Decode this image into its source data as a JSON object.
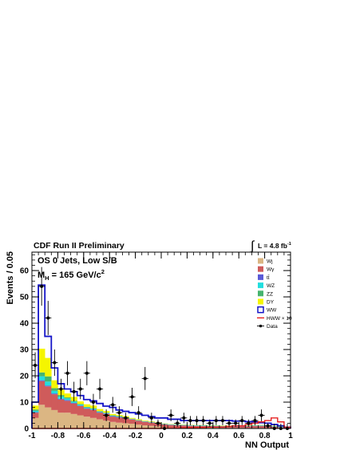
{
  "chart_data": {
    "type": "bar",
    "title": "CDF Run II Preliminary",
    "luminosity": "L = 4.8 fb",
    "luminosity_exp": "-1",
    "channel": "OS 0 Jets, Low S/B",
    "mass_label": "M",
    "mass_sub": "H",
    "mass_value": " = 165 GeV/c",
    "mass_exp": "2",
    "xlabel": "NN Output",
    "ylabel": "Events / 0.05",
    "xlim": [
      -1,
      1
    ],
    "ylim": [
      0,
      67
    ],
    "xticks": [
      -1,
      -0.8,
      -0.6,
      -0.4,
      -0.2,
      0,
      0.2,
      0.4,
      0.6,
      0.8,
      1
    ],
    "xtick_labels": [
      "-1",
      "-0.8",
      "-0.6",
      "-0.4",
      "-0.2",
      "0",
      "0.2",
      "0.4",
      "0.6",
      "0.8",
      "1"
    ],
    "yticks": [
      0,
      10,
      20,
      30,
      40,
      50,
      60
    ],
    "ytick_labels": [
      "0",
      "10",
      "20",
      "30",
      "40",
      "50",
      "60"
    ],
    "bin_edges": [
      -1,
      -0.95,
      -0.9,
      -0.85,
      -0.8,
      -0.75,
      -0.7,
      -0.65,
      -0.6,
      -0.55,
      -0.5,
      -0.45,
      -0.4,
      -0.35,
      -0.3,
      -0.25,
      -0.2,
      -0.15,
      -0.1,
      -0.05,
      0,
      0.05,
      0.1,
      0.15,
      0.2,
      0.25,
      0.3,
      0.35,
      0.4,
      0.45,
      0.5,
      0.55,
      0.6,
      0.65,
      0.7,
      0.75,
      0.8,
      0.85,
      0.9,
      0.95,
      1
    ],
    "stack": [
      {
        "name": "Wj",
        "color": "#dbb683",
        "values": [
          4,
          9,
          8,
          7,
          6,
          6,
          5.5,
          5,
          4.5,
          4,
          3.5,
          3,
          2.5,
          2.2,
          2,
          1.8,
          1.5,
          1.2,
          1,
          0.8,
          0.6,
          0.5,
          0.4,
          0.4,
          0.3,
          0.3,
          0.3,
          0.3,
          0.3,
          0.2,
          0.2,
          0.2,
          0.2,
          0.2,
          0.2,
          0.2,
          0.2,
          0.1,
          0.1,
          0.1
        ]
      },
      {
        "name": "Wγ",
        "color": "#cf5b5b",
        "values": [
          2,
          9,
          8,
          6,
          5,
          4.5,
          4,
          3.5,
          3,
          3,
          2.5,
          2.5,
          2,
          2,
          1.8,
          1.6,
          1.4,
          1.3,
          1.2,
          1,
          0.9,
          0.8,
          0.8,
          0.7,
          0.7,
          0.6,
          0.6,
          0.5,
          0.5,
          0.5,
          0.5,
          0.5,
          0.6,
          0.6,
          0.7,
          0.7,
          0.6,
          0.5,
          0.3,
          0.2
        ]
      },
      {
        "name": "tt̄",
        "color": "#5a5ad6",
        "values": [
          0.2,
          0.3,
          0.3,
          0.3,
          0.3,
          0.3,
          0.2,
          0.2,
          0.2,
          0.2,
          0.2,
          0.2,
          0.2,
          0.2,
          0.2,
          0.1,
          0.1,
          0.1,
          0.1,
          0.1,
          0.1,
          0.1,
          0.1,
          0.1,
          0.1,
          0.1,
          0.1,
          0.1,
          0.1,
          0.1,
          0.1,
          0.1,
          0.1,
          0.1,
          0.1,
          0.1,
          0.1,
          0.1,
          0.1,
          0.1
        ]
      },
      {
        "name": "WZ",
        "color": "#22dede",
        "values": [
          0.5,
          1.5,
          1.5,
          1,
          0.8,
          0.6,
          0.5,
          0.4,
          0.3,
          0.3,
          0.2,
          0.2,
          0.2,
          0.2,
          0.2,
          0.1,
          0.1,
          0.1,
          0.1,
          0.1,
          0.1,
          0.1,
          0.1,
          0.1,
          0.1,
          0.1,
          0.1,
          0.1,
          0.1,
          0.1,
          0.1,
          0.1,
          0.1,
          0.1,
          0.1,
          0.1,
          0.1,
          0.1,
          0.1,
          0.1
        ]
      },
      {
        "name": "ZZ",
        "color": "#46b46e",
        "values": [
          0.5,
          1.5,
          2,
          1,
          0.6,
          0.4,
          0.3,
          0.2,
          0.2,
          0.2,
          0.2,
          0.1,
          0.1,
          0.1,
          0.1,
          0.1,
          0.1,
          0.1,
          0.1,
          0.1,
          0.1,
          0.1,
          0.1,
          0.1,
          0.1,
          0.1,
          0.1,
          0.1,
          0.1,
          0.1,
          0.1,
          0.1,
          0.1,
          0.1,
          0.1,
          0.1,
          0.1,
          0.1,
          0.1,
          0.1
        ]
      },
      {
        "name": "DY",
        "color": "#f5f500",
        "values": [
          1.5,
          9,
          7,
          3,
          2,
          1.5,
          1.5,
          1,
          1,
          1,
          0.8,
          0.6,
          0.5,
          0.4,
          0.4,
          0.3,
          0.3,
          0.2,
          0.2,
          0.2,
          0.1,
          0.1,
          0.1,
          0.1,
          0.1,
          0.1,
          0.1,
          0.1,
          0.1,
          0.1,
          0.1,
          0.1,
          0.1,
          0.1,
          0.1,
          0.1,
          0.1,
          0.1,
          0.1,
          0.1
        ]
      }
    ],
    "ww": {
      "name": "WW",
      "color": "#1414c8",
      "values": [
        10,
        54.5,
        35,
        23,
        17,
        15,
        14,
        12.5,
        11,
        10.5,
        9.5,
        8.5,
        8,
        7,
        6.5,
        6,
        5.5,
        5,
        4.5,
        4,
        4,
        3.5,
        3.5,
        3,
        3,
        3,
        3,
        3,
        3,
        3,
        3,
        2.8,
        2.8,
        2.6,
        2.5,
        2.2,
        2,
        1.5,
        1,
        0.5
      ]
    },
    "hww": {
      "name": "HWW × 10",
      "color": "#e62020",
      "values": [
        0,
        0,
        0,
        0,
        0,
        0,
        0,
        0,
        0,
        0,
        0,
        0,
        0,
        0,
        0,
        0,
        0,
        0,
        0,
        0,
        0.2,
        0.2,
        0.2,
        0.3,
        0.3,
        0.4,
        0.4,
        0.5,
        0.5,
        0.6,
        0.8,
        1,
        1,
        1.5,
        2,
        2.5,
        3,
        4,
        2.5,
        0.5
      ]
    },
    "data": {
      "name": "Data",
      "x": [
        -0.975,
        -0.925,
        -0.875,
        -0.825,
        -0.775,
        -0.725,
        -0.675,
        -0.625,
        -0.575,
        -0.525,
        -0.475,
        -0.425,
        -0.375,
        -0.325,
        -0.275,
        -0.225,
        -0.175,
        -0.125,
        -0.075,
        -0.025,
        0.025,
        0.075,
        0.125,
        0.175,
        0.225,
        0.275,
        0.325,
        0.375,
        0.425,
        0.475,
        0.525,
        0.575,
        0.625,
        0.675,
        0.725,
        0.775,
        0.825,
        0.875,
        0.925,
        0.975
      ],
      "y": [
        24,
        54,
        42,
        25,
        15,
        21,
        14,
        15,
        21,
        10,
        15,
        5,
        9,
        6,
        4,
        12,
        6,
        19,
        4,
        2,
        0,
        5,
        2,
        4,
        3,
        3,
        3,
        2,
        3,
        3,
        2,
        2,
        3,
        2,
        3,
        5,
        1,
        0,
        0,
        0
      ]
    },
    "legend": [
      {
        "label": "Wj",
        "kind": "fill",
        "color": "#dbb683"
      },
      {
        "label": "Wγ",
        "kind": "fill",
        "color": "#cf5b5b"
      },
      {
        "label": "tt̄",
        "kind": "fill",
        "color": "#5a5ad6"
      },
      {
        "label": "WZ",
        "kind": "fill",
        "color": "#22dede"
      },
      {
        "label": "ZZ",
        "kind": "fill",
        "color": "#46b46e"
      },
      {
        "label": "DY",
        "kind": "fill",
        "color": "#f5f500"
      },
      {
        "label": "WW",
        "kind": "box",
        "color": "#1414c8"
      },
      {
        "label": "HWW × 10",
        "kind": "line",
        "color": "#e62020"
      },
      {
        "label": "Data",
        "kind": "marker",
        "color": "#000000"
      }
    ],
    "legend_position": "top-right"
  }
}
